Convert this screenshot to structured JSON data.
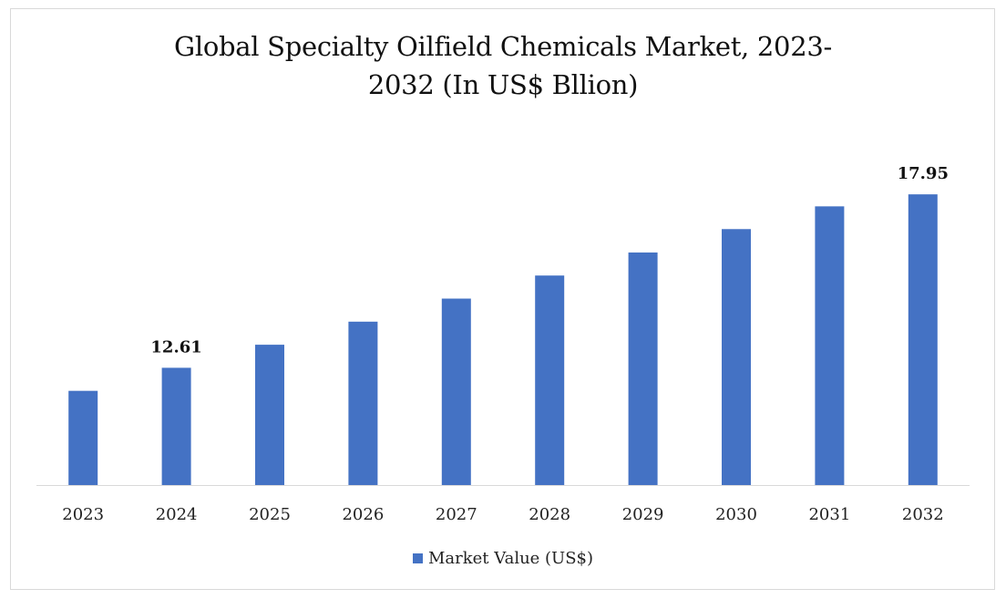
{
  "chart_data": {
    "type": "bar",
    "title_line1": "Global Specialty Oilfield Chemicals Market, 2023-",
    "title_line2": "2032 (In US$ Bllion)",
    "categories": [
      "2023",
      "2024",
      "2025",
      "2026",
      "2027",
      "2028",
      "2029",
      "2030",
      "2031",
      "2032"
    ],
    "series": [
      {
        "name": "Market Value (US$)",
        "values": [
          11.9,
          12.61,
          13.32,
          14.03,
          14.74,
          15.45,
          16.16,
          16.88,
          17.58,
          17.95
        ],
        "data_labels": [
          "",
          "12.61",
          "",
          "",
          "",
          "",
          "",
          "",
          "",
          "17.95"
        ]
      }
    ],
    "ylim": [
      9.0,
      18.6
    ],
    "xlabel": "",
    "ylabel": "",
    "grid": false,
    "legend_position": "bottom",
    "bar_color": "#4472C4"
  }
}
